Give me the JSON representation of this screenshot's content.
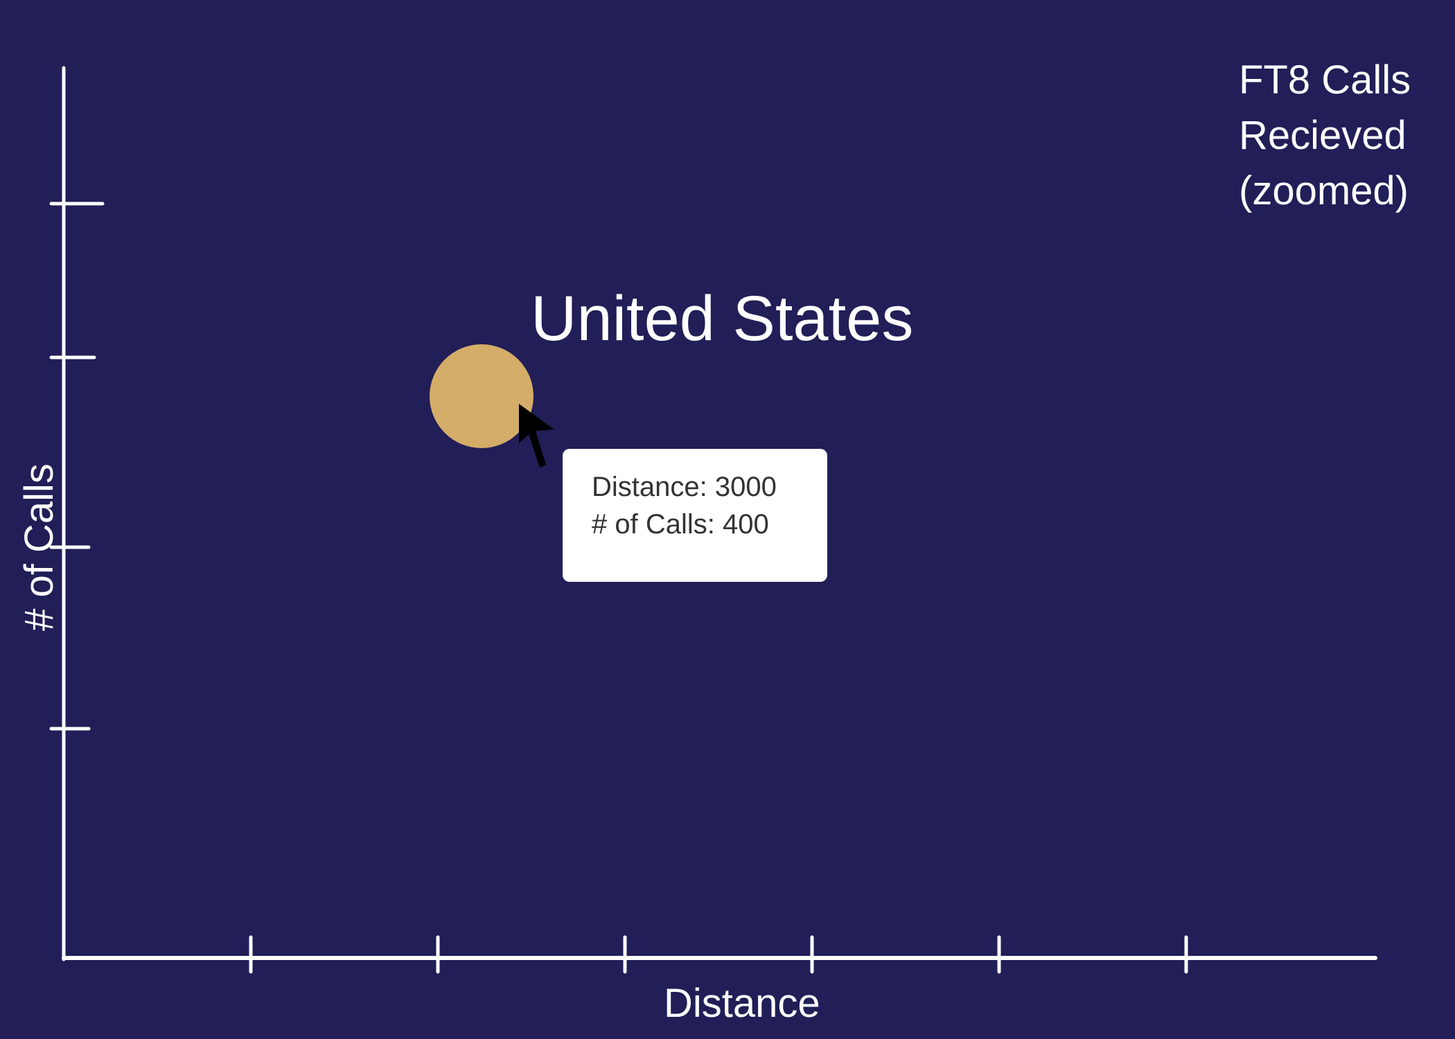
{
  "chart_data": {
    "type": "scatter",
    "title": [
      "FT8 Calls",
      "Recieved",
      "(zoomed)"
    ],
    "xlabel": "Distance",
    "ylabel": "# of Calls",
    "points": [
      {
        "label": "United States",
        "x": 3000,
        "y": 400
      }
    ],
    "xlim": [
      0,
      7000
    ],
    "ylim": [
      0,
      750
    ],
    "x_ticks": [
      1000,
      2000,
      3000,
      4000,
      5000,
      6000
    ],
    "y_ticks": [
      150,
      300,
      500,
      650
    ],
    "grid": false,
    "legend": "none"
  },
  "tooltip": {
    "distance_text": "Distance: 3000",
    "calls_text": "# of Calls: 400"
  },
  "colors": {
    "background": "#221e57",
    "axis": "#ffffff",
    "point": "#d4ad69",
    "tooltip_bg": "#ffffff",
    "tooltip_text": "#333333",
    "cursor": "#000000"
  },
  "icons": {
    "cursor": "mouse-pointer-icon"
  }
}
